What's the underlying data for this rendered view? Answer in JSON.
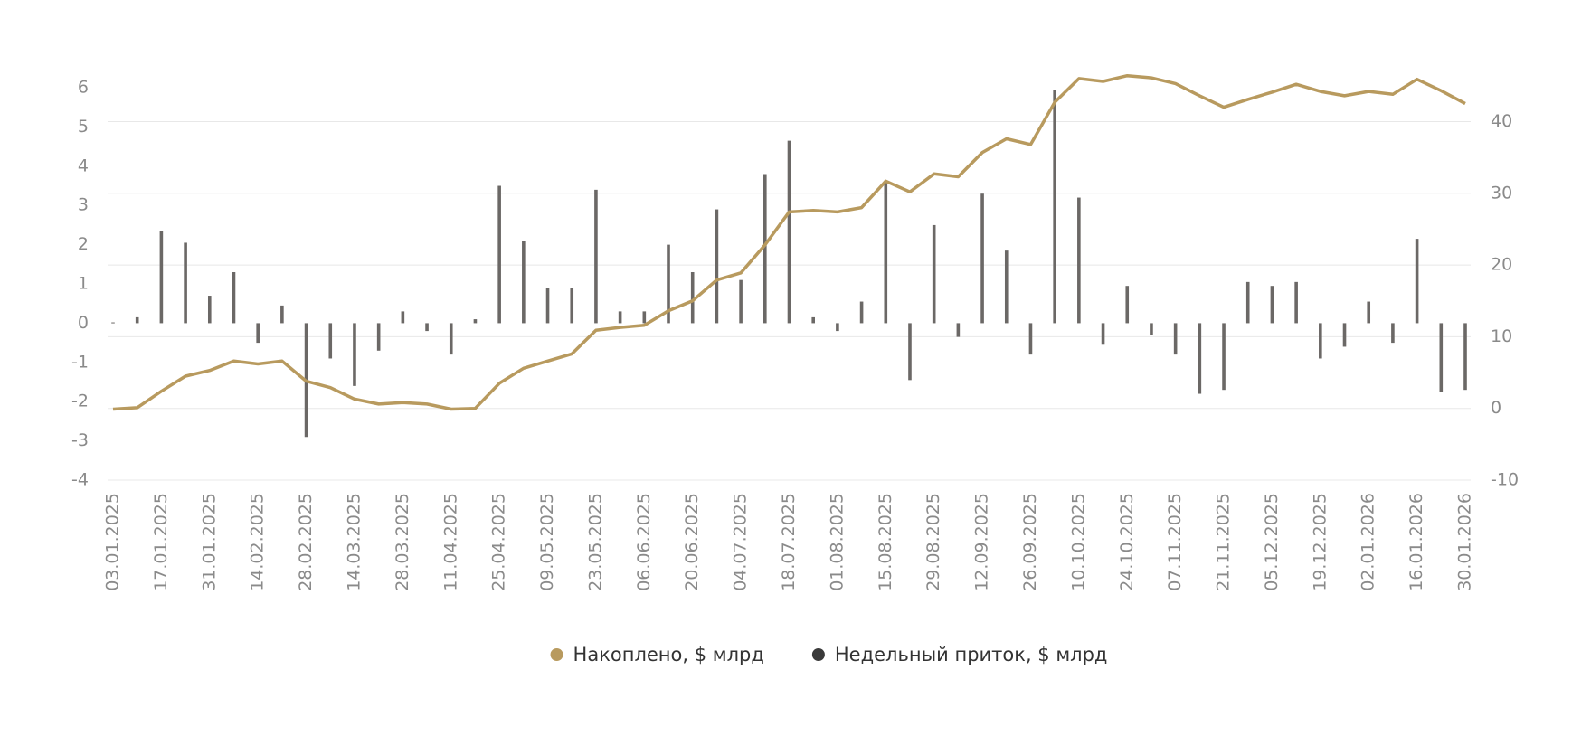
{
  "chart_data": {
    "type": "combo",
    "categories": [
      "03.01.2025",
      null,
      "17.01.2025",
      null,
      "31.01.2025",
      null,
      "14.02.2025",
      null,
      "28.02.2025",
      null,
      "14.03.2025",
      null,
      "28.03.2025",
      null,
      "11.04.2025",
      null,
      "25.04.2025",
      null,
      "09.05.2025",
      null,
      "23.05.2025",
      null,
      "06.06.2025",
      null,
      "20.06.2025",
      null,
      "04.07.2025",
      null,
      "18.07.2025",
      null,
      "01.08.2025",
      null,
      "15.08.2025",
      null,
      "29.08.2025",
      null,
      "12.09.2025",
      null,
      "26.09.2025",
      null,
      "10.10.2025",
      null,
      "24.10.2025",
      null,
      "07.11.2025",
      null,
      "21.11.2025",
      null,
      "05.12.2025",
      null,
      "19.12.2025",
      null,
      "02.01.2026",
      null,
      "16.01.2026",
      null,
      "30.01.2026"
    ],
    "series": [
      {
        "name": "Накоплено, $ млрд",
        "type": "line",
        "axis": "y2",
        "color": "#b89a5e",
        "values": [
          -0.1,
          0.1,
          2.4,
          4.5,
          5.3,
          6.6,
          6.2,
          6.6,
          3.8,
          2.9,
          1.3,
          0.6,
          0.8,
          0.6,
          -0.1,
          0.0,
          3.5,
          5.6,
          6.6,
          7.6,
          10.9,
          11.3,
          11.6,
          13.6,
          15.0,
          17.9,
          18.9,
          22.8,
          27.4,
          27.6,
          27.4,
          28.0,
          31.7,
          30.2,
          32.7,
          32.3,
          35.7,
          37.6,
          36.8,
          42.7,
          46.0,
          45.6,
          46.4,
          46.1,
          45.3,
          43.6,
          42.0,
          43.1,
          44.1,
          45.2,
          44.2,
          43.6,
          44.2,
          43.8,
          45.9,
          44.3,
          42.5
        ]
      },
      {
        "name": "Недельный приток, $ млрд",
        "type": "bar",
        "color": "#6b6866",
        "values": [
          0.02,
          0.15,
          2.35,
          2.05,
          0.7,
          1.3,
          -0.5,
          0.45,
          -2.9,
          -0.9,
          -1.6,
          -0.7,
          0.3,
          -0.2,
          -0.8,
          0.1,
          3.5,
          2.1,
          0.9,
          0.9,
          3.4,
          0.3,
          0.3,
          2.0,
          1.3,
          2.9,
          1.1,
          3.8,
          4.65,
          0.15,
          -0.2,
          0.55,
          3.6,
          -1.45,
          2.5,
          -0.35,
          3.3,
          1.85,
          -0.8,
          5.95,
          3.2,
          -0.55,
          0.95,
          -0.3,
          -0.8,
          -1.8,
          -1.7,
          1.05,
          0.95,
          1.05,
          -0.9,
          -0.6,
          0.55,
          -0.5,
          2.15,
          -1.75,
          -1.7
        ]
      }
    ],
    "ylim": [
      -4,
      6.6
    ],
    "yticks": [
      -4,
      -3,
      -2,
      -1,
      0,
      1,
      2,
      3,
      4,
      5,
      6
    ],
    "y2lim": [
      -10,
      48
    ],
    "y2ticks": [
      -10,
      0,
      10,
      20,
      30,
      40
    ],
    "grid": true
  }
}
